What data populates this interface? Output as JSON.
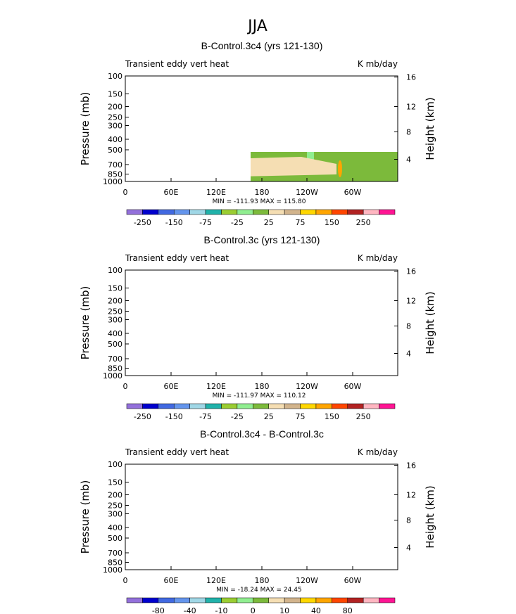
{
  "figure": {
    "main_title": "JJA"
  },
  "colors": {
    "palette": [
      "#9370DB",
      "#0000CD",
      "#4169E1",
      "#6495ED",
      "#A0D7E6",
      "#20B2AA",
      "#9ACD32",
      "#90EE90",
      "#7CBA3B",
      "#F5DEB3",
      "#D2B48C",
      "#FFD700",
      "#FFA500",
      "#FF4500",
      "#B22222",
      "#FFB6C1",
      "#FF1493"
    ]
  },
  "chart_data": [
    {
      "type": "heatmap",
      "title": "B-Control.3c4 (yrs 121-130)",
      "left_label": "Transient eddy vert heat",
      "right_label": "K mb/day",
      "ylabel": "Pressure (mb)",
      "y2label": "Height (km)",
      "x_ticks": [
        "0",
        "60E",
        "120E",
        "180",
        "120W",
        "60W"
      ],
      "y_ticks": [
        "100",
        "150",
        "200",
        "250",
        "300",
        "400",
        "500",
        "700",
        "850",
        "1000"
      ],
      "y2_ticks": [
        "16",
        "12",
        "8",
        "4"
      ],
      "stats": "MIN = -111.93  MAX = 115.80",
      "colorbar_labels": [
        "-250",
        "-150",
        "-75",
        "-25",
        "25",
        "75",
        "150",
        "250"
      ]
    },
    {
      "type": "heatmap",
      "title": "B-Control.3c (yrs 121-130)",
      "left_label": "Transient eddy vert heat",
      "right_label": "K mb/day",
      "ylabel": "Pressure (mb)",
      "y2label": "Height (km)",
      "x_ticks": [
        "0",
        "60E",
        "120E",
        "180",
        "120W",
        "60W"
      ],
      "y_ticks": [
        "100",
        "150",
        "200",
        "250",
        "300",
        "400",
        "500",
        "700",
        "850",
        "1000"
      ],
      "y2_ticks": [
        "16",
        "12",
        "8",
        "4"
      ],
      "stats": "MIN = -111.97  MAX = 110.12",
      "colorbar_labels": [
        "-250",
        "-150",
        "-75",
        "-25",
        "25",
        "75",
        "150",
        "250"
      ]
    },
    {
      "type": "heatmap",
      "title": "B-Control.3c4 - B-Control.3c",
      "left_label": "Transient eddy vert heat",
      "right_label": "K mb/day",
      "ylabel": "Pressure (mb)",
      "y2label": "Height (km)",
      "x_ticks": [
        "0",
        "60E",
        "120E",
        "180",
        "120W",
        "60W"
      ],
      "y_ticks": [
        "100",
        "150",
        "200",
        "250",
        "300",
        "400",
        "500",
        "700",
        "850",
        "1000"
      ],
      "y2_ticks": [
        "16",
        "12",
        "8",
        "4"
      ],
      "stats": "MIN = -18.24  MAX = 24.45",
      "colorbar_labels": [
        "-80",
        "-40",
        "-10",
        "0",
        "10",
        "40",
        "80"
      ]
    }
  ]
}
